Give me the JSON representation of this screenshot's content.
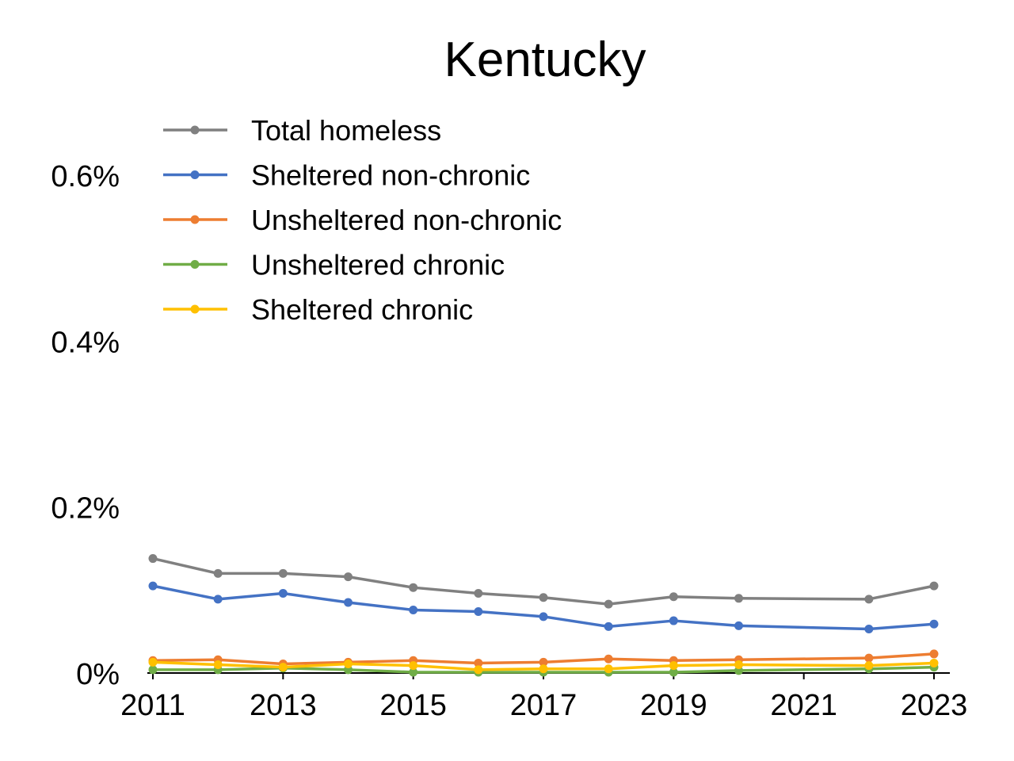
{
  "chart_data": {
    "type": "line",
    "title": "Kentucky",
    "xlabel": "",
    "ylabel": "",
    "x_ticks": [
      "2011",
      "2013",
      "2015",
      "2017",
      "2019",
      "2021",
      "2023"
    ],
    "y_ticks": [
      "0%",
      "0.2%",
      "0.4%",
      "0.6%"
    ],
    "y_tick_values": [
      0,
      0.2,
      0.4,
      0.6
    ],
    "xlim": [
      2011,
      2023
    ],
    "ylim": [
      0,
      0.6
    ],
    "grid": false,
    "legend_position": "top-left",
    "x": [
      2011,
      2012,
      2013,
      2014,
      2015,
      2016,
      2017,
      2018,
      2019,
      2020,
      2022,
      2023
    ],
    "series": [
      {
        "name": "Total homeless",
        "color": "#808080",
        "values": [
          0.138,
          0.12,
          0.12,
          0.116,
          0.103,
          0.096,
          0.091,
          0.083,
          0.092,
          0.09,
          0.089,
          0.105
        ]
      },
      {
        "name": "Sheltered non-chronic",
        "color": "#4472c4",
        "values": [
          0.105,
          0.089,
          0.096,
          0.085,
          0.076,
          0.074,
          0.068,
          0.056,
          0.063,
          0.057,
          0.053,
          0.059
        ]
      },
      {
        "name": "Unsheltered non-chronic",
        "color": "#ed7d31",
        "values": [
          0.015,
          0.016,
          0.011,
          0.013,
          0.015,
          0.012,
          0.013,
          0.017,
          0.015,
          0.016,
          0.018,
          0.023
        ]
      },
      {
        "name": "Unsheltered chronic",
        "color": "#70ad47",
        "values": [
          0.004,
          0.004,
          0.006,
          0.004,
          0.001,
          0.001,
          0.001,
          0.001,
          0.001,
          0.003,
          0.005,
          0.007
        ]
      },
      {
        "name": "Sheltered chronic",
        "color": "#ffc000",
        "values": [
          0.013,
          0.01,
          0.007,
          0.011,
          0.009,
          0.004,
          0.005,
          0.005,
          0.009,
          0.01,
          0.009,
          0.012
        ]
      }
    ]
  }
}
